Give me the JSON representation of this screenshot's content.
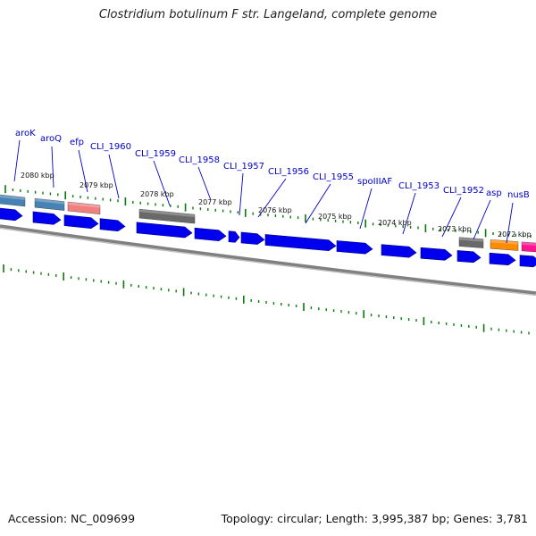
{
  "title": "Clostridium botulinum F str. Langeland, complete genome",
  "footer": {
    "accession": "Accession: NC_009699",
    "topology": "Topology: circular; Length: 3,995,387 bp; Genes: 3,781"
  },
  "colors": {
    "background": "#ffffff",
    "backbone": "#808080",
    "cds": "#0000ee",
    "ticks": "#0a7a0a",
    "gene_label": "#0000cc",
    "gene_steelblue": "#4682b4",
    "gene_salmon": "#f08080",
    "gene_gray": "#696969",
    "gene_orange": "#ff8c00",
    "gene_pink": "#ff1493"
  },
  "genes": [
    {
      "name": "aroK"
    },
    {
      "name": "aroQ"
    },
    {
      "name": "efp"
    },
    {
      "name": "CLI_1960"
    },
    {
      "name": "CLI_1959"
    },
    {
      "name": "CLI_1958"
    },
    {
      "name": "CLI_1957"
    },
    {
      "name": "CLI_1956"
    },
    {
      "name": "CLI_1955"
    },
    {
      "name": "spoIIIAF"
    },
    {
      "name": "CLI_1953"
    },
    {
      "name": "CLI_1952"
    },
    {
      "name": "asp"
    },
    {
      "name": "nusB"
    }
  ],
  "kbp_labels": [
    "2080 kbp",
    "2079 kbp",
    "2078 kbp",
    "2077 kbp",
    "2076 kbp",
    "2075 kbp",
    "2074 kbp",
    "2073 kbp",
    "2072 kbp"
  ]
}
